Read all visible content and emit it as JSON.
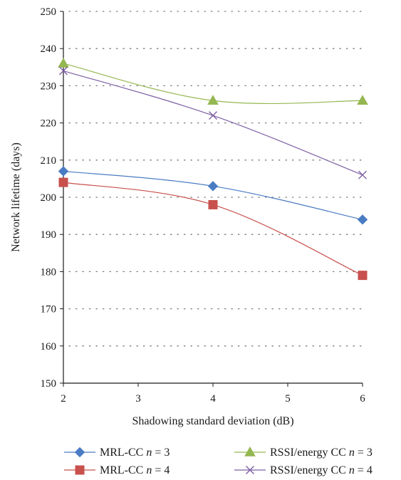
{
  "chart_data": {
    "type": "line",
    "xlabel": "Shadowing standard deviation (dB)",
    "ylabel": "Network lifetime (days)",
    "xlim": [
      2,
      6
    ],
    "ylim": [
      150,
      250
    ],
    "x_ticks": [
      "2",
      "3",
      "4",
      "5",
      "6"
    ],
    "y_ticks": [
      "150",
      "160",
      "170",
      "180",
      "190",
      "200",
      "210",
      "220",
      "230",
      "240",
      "250"
    ],
    "horizontal_grid": "dotted",
    "legend_position": "bottom",
    "series": [
      {
        "name": "MRL-CC",
        "n_label": "n",
        "n_value": "= 3",
        "marker": "diamond",
        "color": "#4a7cc4",
        "x": [
          2,
          4,
          6
        ],
        "y": [
          207,
          203,
          194
        ]
      },
      {
        "name": "MRL-CC",
        "n_label": "n",
        "n_value": "= 4",
        "marker": "square",
        "color": "#c8504d",
        "x": [
          2,
          4,
          6
        ],
        "y": [
          204,
          198,
          179
        ]
      },
      {
        "name": "RSSI/energy CC",
        "n_label": "n",
        "n_value": "= 3",
        "marker": "triangle",
        "color": "#95b751",
        "x": [
          2,
          4,
          6
        ],
        "y": [
          236,
          226,
          226
        ]
      },
      {
        "name": "RSSI/energy CC",
        "n_label": "n",
        "n_value": "= 4",
        "marker": "x",
        "color": "#7e5fa4",
        "x": [
          2,
          4,
          6
        ],
        "y": [
          234,
          222,
          206
        ]
      }
    ]
  }
}
